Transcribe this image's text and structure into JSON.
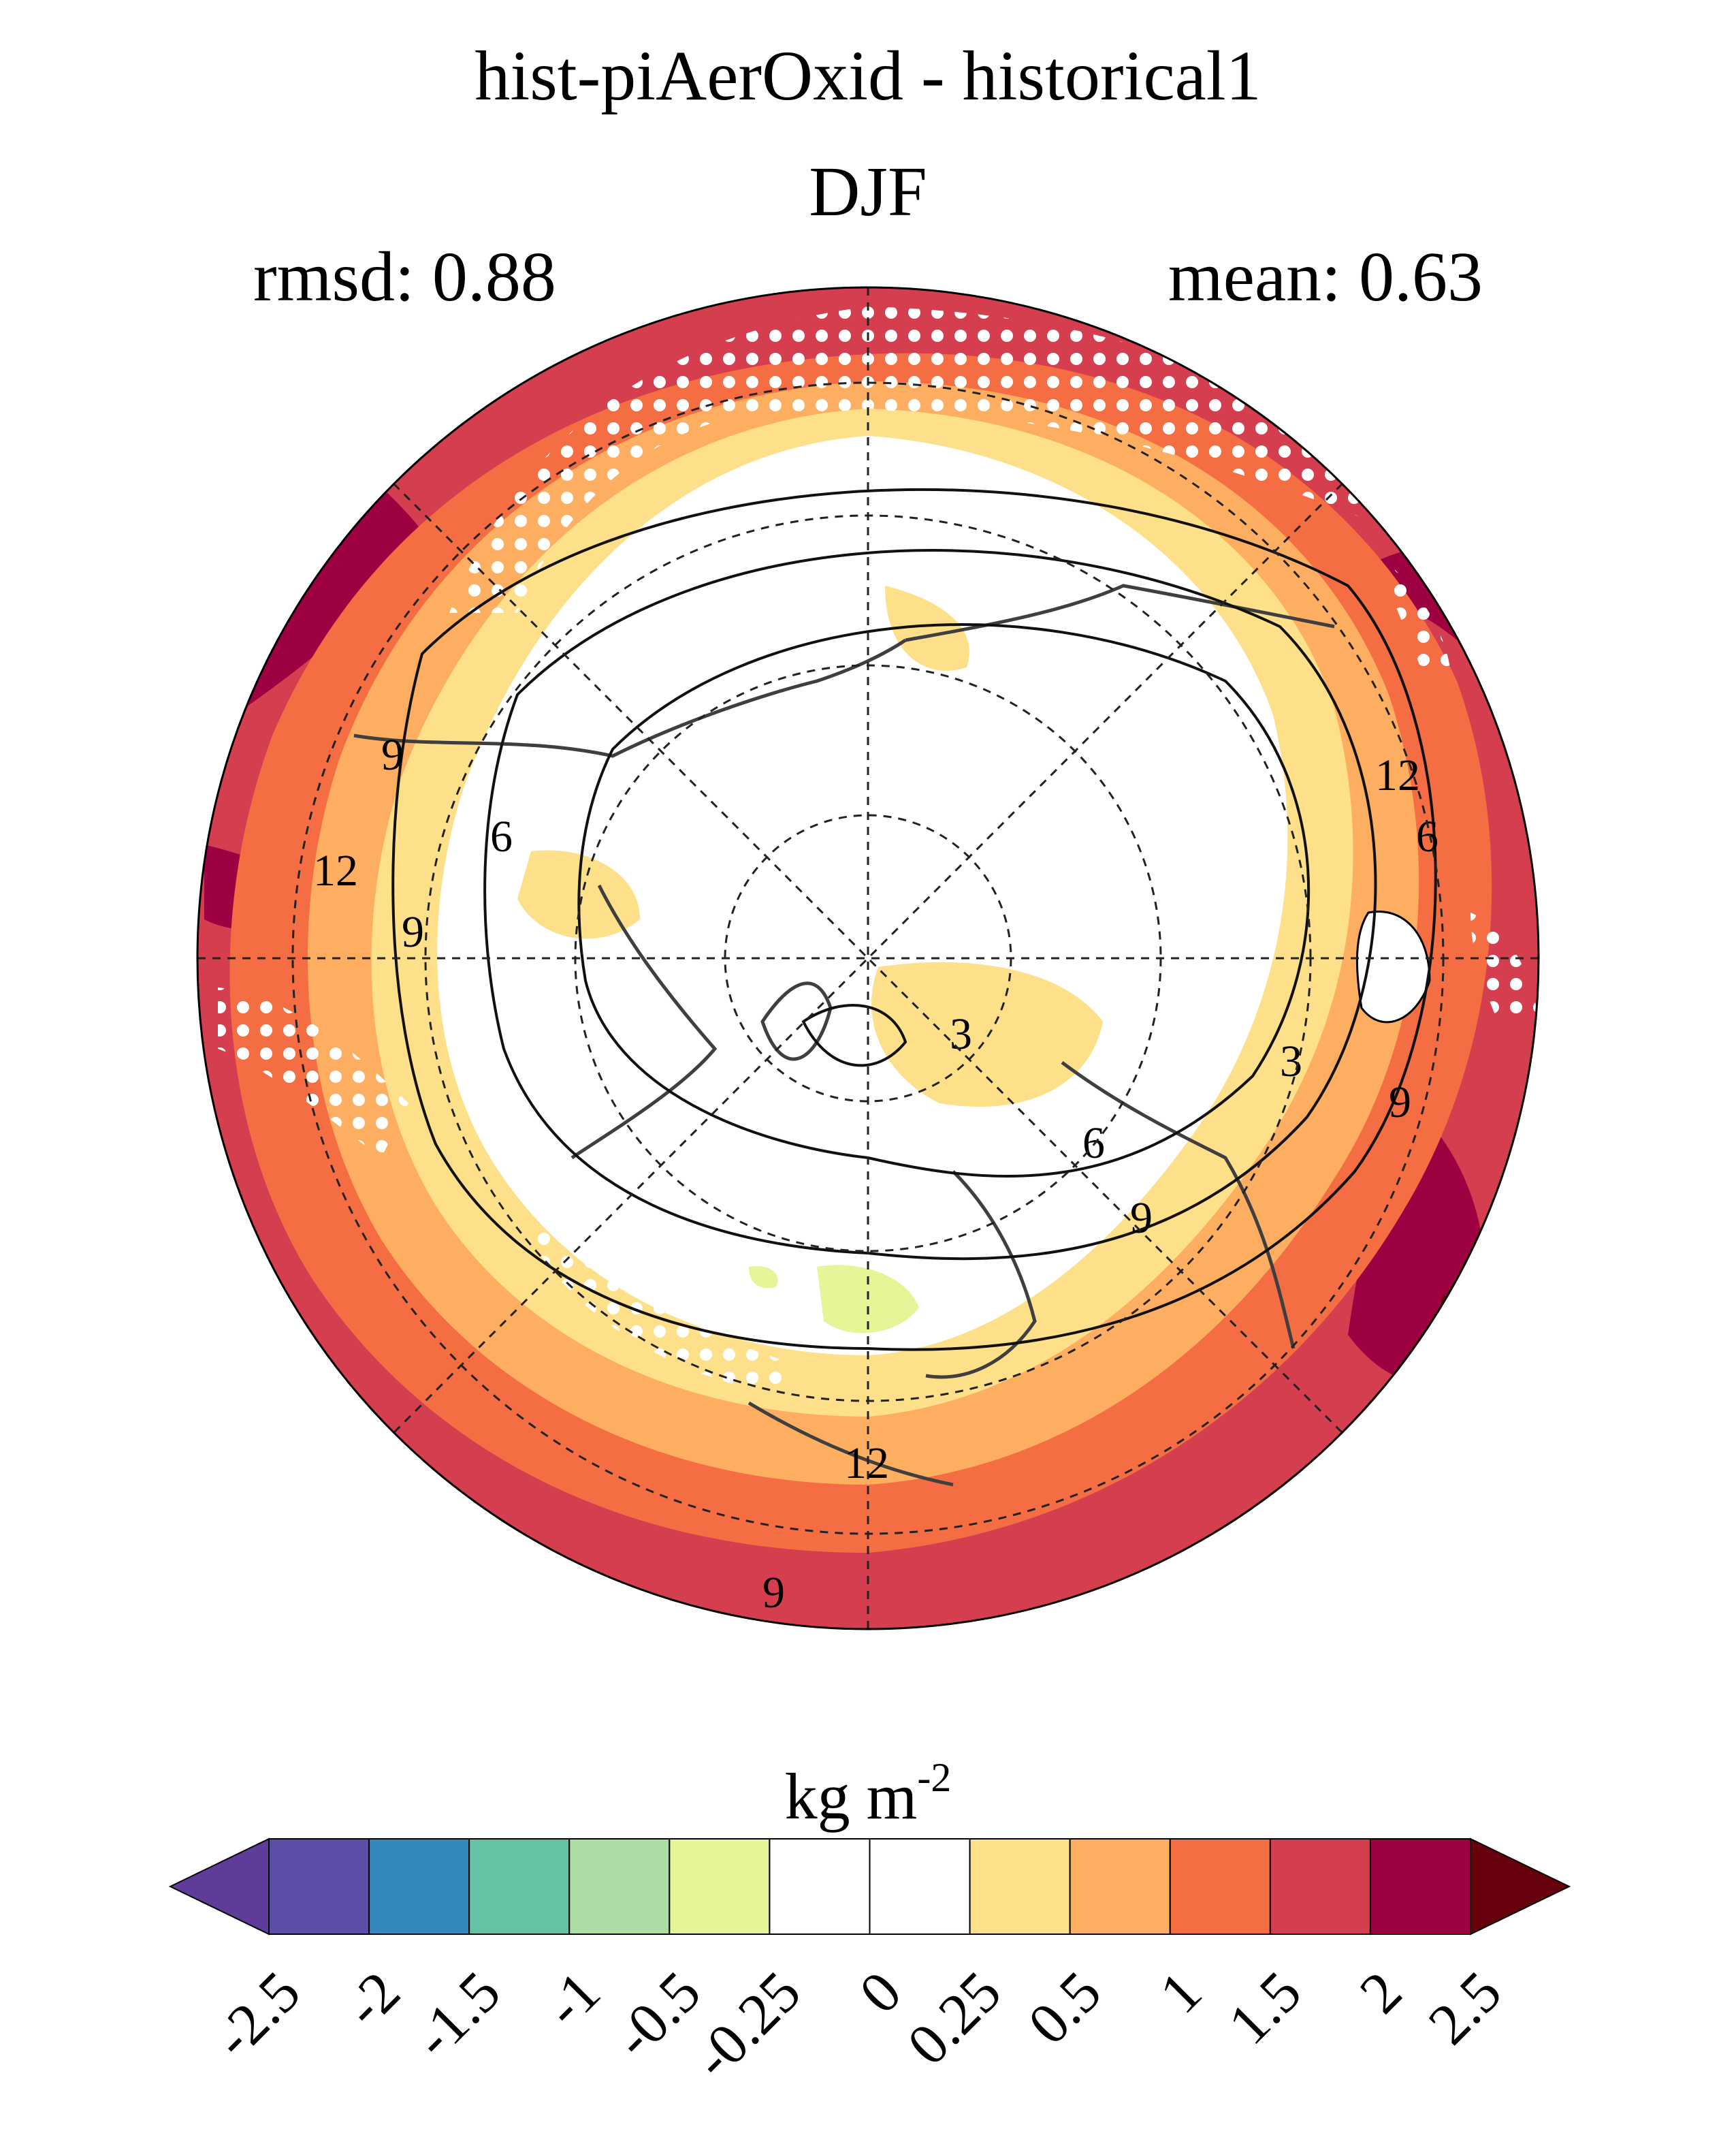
{
  "title": {
    "line1": "hist-piAerOxid - historical1",
    "line2": "DJF"
  },
  "stats": {
    "rmsd_label": "rmsd: 0.88",
    "mean_label": "mean: 0.63"
  },
  "chart_data": {
    "type": "heatmap",
    "projection": "north polar stereographic",
    "title": "hist-piAerOxid - historical1",
    "subtitle": "DJF",
    "rmsd": 0.88,
    "mean": 0.63,
    "stippling": "white dots mark regions of significance",
    "contour_labels": [
      "3",
      "6",
      "9",
      "12",
      "6",
      "9",
      "12",
      "9",
      "6",
      "9",
      "12",
      "3",
      "9"
    ],
    "contour_levels": [
      3,
      6,
      9,
      12
    ],
    "colorbar": {
      "units": "kg m",
      "units_exponent": "-2",
      "tick_labels": [
        "-2.5",
        "-2",
        "-1.5",
        "-1",
        "-0.5",
        "-0.25",
        "0",
        "0.25",
        "0.5",
        "1",
        "1.5",
        "2",
        "2.5"
      ],
      "levels": [
        -2.5,
        -2,
        -1.5,
        -1,
        -0.5,
        -0.25,
        0,
        0.25,
        0.5,
        1,
        1.5,
        2,
        2.5
      ],
      "colors": [
        "#5e3c99",
        "#5b4ea6",
        "#3288bd",
        "#66c2a5",
        "#abdda4",
        "#e6f598",
        "#ffffff",
        "#ffffff",
        "#fee08b",
        "#fdae61",
        "#f46d43",
        "#d53e4f",
        "#9e0142",
        "#67000d"
      ],
      "extend": "both"
    }
  }
}
